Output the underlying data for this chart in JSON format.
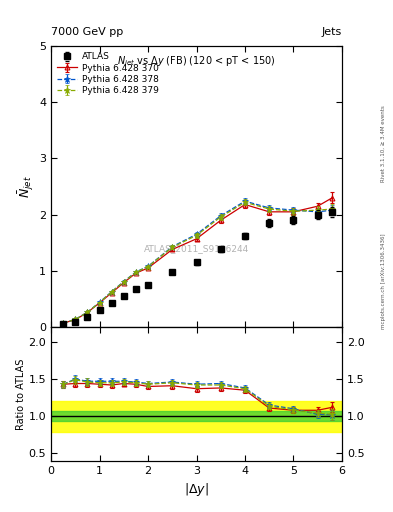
{
  "title_top": "7000 GeV pp",
  "title_right": "Jets",
  "watermark": "ATLAS_2011_S9126244",
  "right_label": "Rivet 3.1.10, ≥ 3.4M events",
  "right_label2": "mcplots.cern.ch [arXiv:1306.3436]",
  "ylabel_main": "$\\bar{N}_{jet}$",
  "ylabel_ratio": "Ratio to ATLAS",
  "xlabel": "$|\\Delta y|$",
  "plot_title": "$N_{jet}$ vs $\\Delta y$ (FB) (120 < pT < 150)",
  "atlas_x": [
    0.25,
    0.5,
    0.75,
    1.0,
    1.25,
    1.5,
    1.75,
    2.0,
    2.5,
    3.0,
    3.5,
    4.0,
    4.5,
    5.0,
    5.5,
    5.8
  ],
  "atlas_y": [
    0.05,
    0.09,
    0.18,
    0.3,
    0.43,
    0.55,
    0.67,
    0.75,
    0.98,
    1.15,
    1.38,
    1.62,
    1.85,
    1.9,
    2.0,
    2.05
  ],
  "atlas_yerr": [
    0.003,
    0.004,
    0.007,
    0.012,
    0.015,
    0.02,
    0.025,
    0.028,
    0.035,
    0.04,
    0.05,
    0.06,
    0.07,
    0.07,
    0.08,
    0.09
  ],
  "py370_x": [
    0.25,
    0.5,
    0.75,
    1.0,
    1.25,
    1.5,
    1.75,
    2.0,
    2.5,
    3.0,
    3.5,
    4.0,
    4.5,
    5.0,
    5.5,
    5.8
  ],
  "py370_y": [
    0.07,
    0.13,
    0.26,
    0.43,
    0.61,
    0.79,
    0.96,
    1.05,
    1.38,
    1.57,
    1.9,
    2.18,
    2.05,
    2.05,
    2.15,
    2.3
  ],
  "py370_yerr": [
    0.002,
    0.004,
    0.006,
    0.01,
    0.014,
    0.018,
    0.022,
    0.025,
    0.033,
    0.038,
    0.047,
    0.056,
    0.058,
    0.06,
    0.065,
    0.1
  ],
  "py370_color": "#cc0000",
  "py370_label": "Pythia 6.428 370",
  "py378_x": [
    0.25,
    0.5,
    0.75,
    1.0,
    1.25,
    1.5,
    1.75,
    2.0,
    2.5,
    3.0,
    3.5,
    4.0,
    4.5,
    5.0,
    5.5,
    5.8
  ],
  "py378_y": [
    0.07,
    0.135,
    0.265,
    0.44,
    0.63,
    0.81,
    0.98,
    1.08,
    1.43,
    1.65,
    1.98,
    2.24,
    2.12,
    2.08,
    2.05,
    2.08
  ],
  "py378_yerr": [
    0.002,
    0.004,
    0.006,
    0.01,
    0.014,
    0.018,
    0.022,
    0.025,
    0.033,
    0.038,
    0.047,
    0.056,
    0.058,
    0.06,
    0.065,
    0.09
  ],
  "py378_color": "#0055cc",
  "py378_label": "Pythia 6.428 378",
  "py379_x": [
    0.25,
    0.5,
    0.75,
    1.0,
    1.25,
    1.5,
    1.75,
    2.0,
    2.5,
    3.0,
    3.5,
    4.0,
    4.5,
    5.0,
    5.5,
    5.8
  ],
  "py379_y": [
    0.07,
    0.134,
    0.263,
    0.435,
    0.625,
    0.805,
    0.975,
    1.075,
    1.42,
    1.63,
    1.96,
    2.22,
    2.1,
    2.06,
    2.08,
    2.1
  ],
  "py379_yerr": [
    0.002,
    0.004,
    0.006,
    0.01,
    0.014,
    0.018,
    0.022,
    0.025,
    0.033,
    0.038,
    0.047,
    0.056,
    0.058,
    0.06,
    0.065,
    0.09
  ],
  "py379_color": "#88aa00",
  "py379_label": "Pythia 6.428 379",
  "ratio_py370": [
    1.43,
    1.44,
    1.44,
    1.43,
    1.42,
    1.44,
    1.43,
    1.4,
    1.41,
    1.37,
    1.38,
    1.35,
    1.11,
    1.08,
    1.08,
    1.12
  ],
  "ratio_py378": [
    1.43,
    1.5,
    1.47,
    1.47,
    1.47,
    1.47,
    1.46,
    1.44,
    1.46,
    1.43,
    1.44,
    1.38,
    1.15,
    1.1,
    1.025,
    1.02
  ],
  "ratio_py379": [
    1.43,
    1.49,
    1.46,
    1.45,
    1.45,
    1.46,
    1.45,
    1.43,
    1.45,
    1.42,
    1.42,
    1.37,
    1.135,
    1.085,
    1.04,
    1.025
  ],
  "ratio_py370_err": [
    0.05,
    0.05,
    0.05,
    0.04,
    0.04,
    0.04,
    0.04,
    0.04,
    0.04,
    0.04,
    0.04,
    0.04,
    0.04,
    0.04,
    0.05,
    0.07
  ],
  "ratio_py378_err": [
    0.05,
    0.05,
    0.05,
    0.04,
    0.04,
    0.04,
    0.04,
    0.04,
    0.04,
    0.04,
    0.04,
    0.04,
    0.04,
    0.04,
    0.05,
    0.07
  ],
  "ratio_py379_err": [
    0.05,
    0.05,
    0.05,
    0.04,
    0.04,
    0.04,
    0.04,
    0.04,
    0.04,
    0.04,
    0.04,
    0.04,
    0.04,
    0.04,
    0.05,
    0.07
  ],
  "ylim_main": [
    0,
    5
  ],
  "ylim_ratio": [
    0.4,
    2.2
  ],
  "xlim": [
    0,
    6
  ],
  "yticks_main": [
    0,
    1,
    2,
    3,
    4,
    5
  ],
  "yticks_ratio": [
    0.5,
    1.0,
    1.5,
    2.0
  ],
  "bg_color": "#ffffff"
}
